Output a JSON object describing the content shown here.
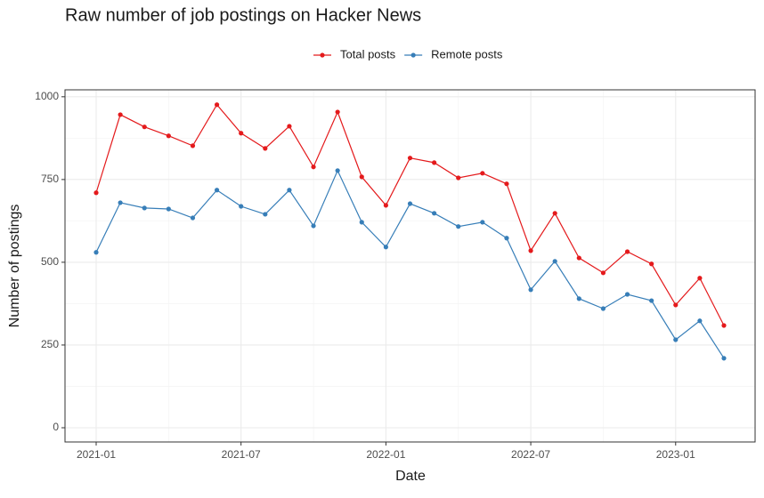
{
  "chart_data": {
    "type": "line",
    "title": "Raw number of job postings on Hacker News",
    "x_label": "Date",
    "y_label": "Number of postings",
    "x": [
      "2021-01",
      "2021-02",
      "2021-03",
      "2021-04",
      "2021-05",
      "2021-06",
      "2021-07",
      "2021-08",
      "2021-09",
      "2021-10",
      "2021-11",
      "2021-12",
      "2022-01",
      "2022-02",
      "2022-03",
      "2022-04",
      "2022-05",
      "2022-06",
      "2022-07",
      "2022-08",
      "2022-09",
      "2022-10",
      "2022-11",
      "2022-12",
      "2023-01",
      "2023-02",
      "2023-03"
    ],
    "series": [
      {
        "name": "Total posts",
        "color": "#e41a1c",
        "values": [
          710,
          946,
          909,
          882,
          852,
          976,
          890,
          844,
          911,
          788,
          954,
          758,
          672,
          815,
          801,
          755,
          769,
          737,
          535,
          648,
          513,
          468,
          532,
          495,
          371,
          452,
          309
        ]
      },
      {
        "name": "Remote posts",
        "color": "#377eb8",
        "values": [
          530,
          680,
          664,
          661,
          634,
          718,
          669,
          645,
          718,
          610,
          777,
          621,
          546,
          677,
          648,
          608,
          621,
          573,
          417,
          503,
          390,
          360,
          403,
          384,
          266,
          323,
          210
        ]
      }
    ],
    "xticks": [
      "2021-01",
      "2021-07",
      "2022-01",
      "2022-07",
      "2023-01"
    ],
    "ylim": [
      -43,
      1021
    ],
    "yticks": [
      0,
      250,
      500,
      750,
      1000
    ],
    "grid": true,
    "legend": "top"
  }
}
